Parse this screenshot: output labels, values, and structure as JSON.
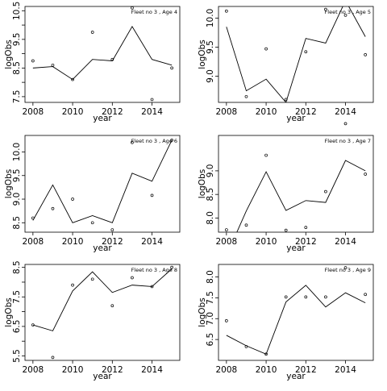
{
  "chart_data": [
    {
      "type": "line",
      "title": "Fleet no 3 , Age 4",
      "xlabel": "year",
      "ylabel": "logObs",
      "xlim": [
        2007.6,
        2015.4
      ],
      "ylim": [
        7.3,
        10.65
      ],
      "xticks": [
        2008,
        2010,
        2012,
        2014
      ],
      "yticks": [
        7.5,
        8.0,
        8.5,
        9.0,
        9.5,
        10.0,
        10.5
      ],
      "ytick_labels": [
        "7.5",
        "8.0",
        "8.5",
        "9.0",
        "9.5",
        "10.0",
        "10.5"
      ],
      "x": [
        2008,
        2009,
        2010,
        2011,
        2012,
        2013,
        2014,
        2015
      ],
      "fitted": [
        8.5,
        8.55,
        8.1,
        8.8,
        8.75,
        9.95,
        8.8,
        8.6
      ],
      "observed": [
        8.75,
        8.6,
        8.1,
        9.75,
        8.8,
        10.6,
        7.4,
        8.5
      ],
      "grid": false,
      "legend": "none"
    },
    {
      "type": "line",
      "title": "Fleet no 3 , Age 5",
      "xlabel": "year",
      "ylabel": "logObs",
      "xlim": [
        2007.6,
        2015.4
      ],
      "ylim": [
        8.55,
        10.2
      ],
      "xticks": [
        2008,
        2010,
        2012,
        2014
      ],
      "yticks": [
        9.0,
        9.5,
        10.0
      ],
      "ytick_labels": [
        "9.0",
        "9.5",
        "10.0"
      ],
      "x": [
        2008,
        2009,
        2010,
        2011,
        2012,
        2013,
        2014,
        2015
      ],
      "fitted": [
        9.85,
        8.75,
        8.95,
        8.55,
        9.65,
        9.57,
        10.3,
        9.68
      ],
      "observed": [
        10.12,
        8.65,
        9.47,
        8.6,
        9.42,
        10.15,
        10.05,
        9.37
      ],
      "grid": false,
      "legend": "none"
    },
    {
      "type": "line",
      "title": "Fleet no 3 , Age 6",
      "xlabel": "year",
      "ylabel": "logObs",
      "xlim": [
        2007.6,
        2015.4
      ],
      "ylim": [
        8.3,
        10.35
      ],
      "xticks": [
        2008,
        2010,
        2012,
        2014
      ],
      "yticks": [
        8.5,
        9.0,
        9.5,
        10.0
      ],
      "ytick_labels": [
        "8.5",
        "9.0",
        "9.5",
        "10.0"
      ],
      "x": [
        2008,
        2009,
        2010,
        2011,
        2012,
        2013,
        2014,
        2015
      ],
      "fitted": [
        8.55,
        9.3,
        8.5,
        8.65,
        8.5,
        9.55,
        9.38,
        10.25
      ],
      "observed": [
        8.6,
        8.8,
        9.0,
        8.5,
        8.35,
        10.2,
        9.08,
        10.25
      ],
      "grid": false,
      "legend": "none"
    },
    {
      "type": "line",
      "title": "Fleet no 3 , Age 7",
      "xlabel": "year",
      "ylabel": "logObs",
      "xlim": [
        2007.6,
        2015.4
      ],
      "ylim": [
        7.7,
        9.75
      ],
      "xticks": [
        2008,
        2010,
        2012,
        2014
      ],
      "yticks": [
        8.0,
        8.5,
        9.0
      ],
      "ytick_labels": [
        "8.0",
        "8.5",
        "9.0"
      ],
      "x": [
        2008,
        2009,
        2010,
        2011,
        2012,
        2013,
        2014,
        2015
      ],
      "fitted": [
        7.2,
        8.15,
        8.98,
        8.16,
        8.37,
        8.33,
        9.22,
        9.0
      ],
      "observed": [
        7.75,
        7.85,
        9.33,
        7.74,
        7.8,
        8.56,
        10.0,
        8.93
      ],
      "grid": false,
      "legend": "none"
    },
    {
      "type": "line",
      "title": "Fleet no 3 , Age 8",
      "xlabel": "year",
      "ylabel": "logObs",
      "xlim": [
        2007.6,
        2015.4
      ],
      "ylim": [
        5.35,
        8.6
      ],
      "xticks": [
        2008,
        2010,
        2012,
        2014
      ],
      "yticks": [
        5.5,
        6.0,
        6.5,
        7.0,
        7.5,
        8.0,
        8.5
      ],
      "ytick_labels": [
        "5.5",
        "6.0",
        "6.5",
        "7.0",
        "7.5",
        "8.0",
        "8.5"
      ],
      "x": [
        2008,
        2009,
        2010,
        2011,
        2012,
        2013,
        2014,
        2015
      ],
      "fitted": [
        6.55,
        6.35,
        7.7,
        8.35,
        7.65,
        7.9,
        7.85,
        8.45
      ],
      "observed": [
        6.55,
        5.45,
        7.9,
        8.1,
        7.2,
        8.15,
        7.85,
        8.5
      ],
      "grid": false,
      "legend": "none"
    },
    {
      "type": "line",
      "title": "Fleet no 3 , Age 9",
      "xlabel": "year",
      "ylabel": "logObs",
      "xlim": [
        2007.6,
        2015.4
      ],
      "ylim": [
        6.0,
        8.3
      ],
      "xticks": [
        2008,
        2010,
        2012,
        2014
      ],
      "yticks": [
        6.5,
        7.0,
        7.5,
        8.0
      ],
      "ytick_labels": [
        "6.5",
        "7.0",
        "7.5",
        "8.0"
      ],
      "x": [
        2008,
        2009,
        2010,
        2011,
        2012,
        2013,
        2014,
        2015
      ],
      "fitted": [
        6.6,
        6.35,
        6.15,
        7.4,
        7.8,
        7.28,
        7.62,
        7.38
      ],
      "observed": [
        6.95,
        6.33,
        6.15,
        7.52,
        7.52,
        7.52,
        8.22,
        7.58
      ],
      "grid": false,
      "legend": "none"
    }
  ]
}
